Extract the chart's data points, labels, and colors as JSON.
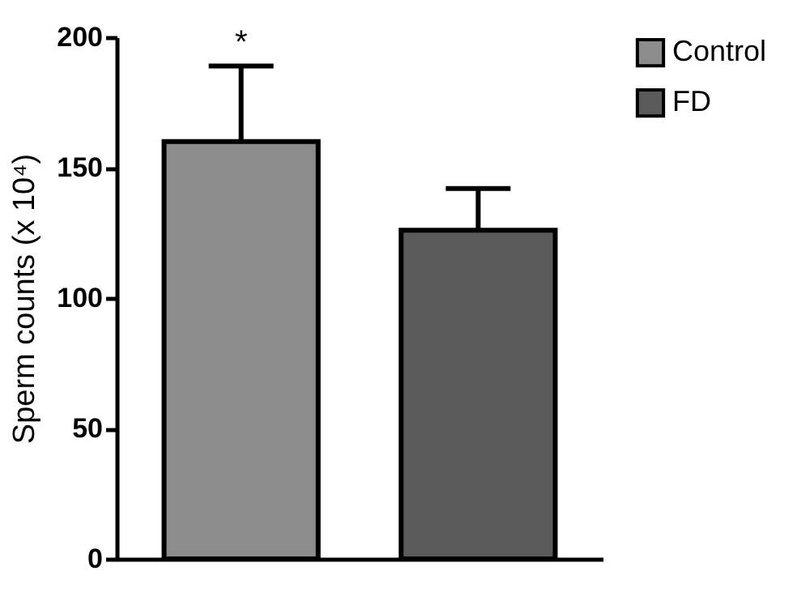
{
  "chart_data": {
    "type": "bar",
    "ylabel": "Sperm counts (x 10⁴)",
    "categories": [
      null,
      null
    ],
    "series": [
      {
        "name": "Control",
        "color": "#8c8c8c",
        "values": [
          160,
          null
        ],
        "errors": [
          [
            160,
            189
          ],
          null
        ]
      },
      {
        "name": "FD",
        "color": "#5a5a5a",
        "values": [
          null,
          126
        ],
        "errors": [
          null,
          [
            126,
            142
          ]
        ]
      }
    ],
    "ylim": [
      0,
      200
    ],
    "yticks": [
      0,
      50,
      100,
      150,
      200
    ],
    "grid": false,
    "legend": "right",
    "tick_labels": "y",
    "annotations": [
      "*"
    ]
  }
}
